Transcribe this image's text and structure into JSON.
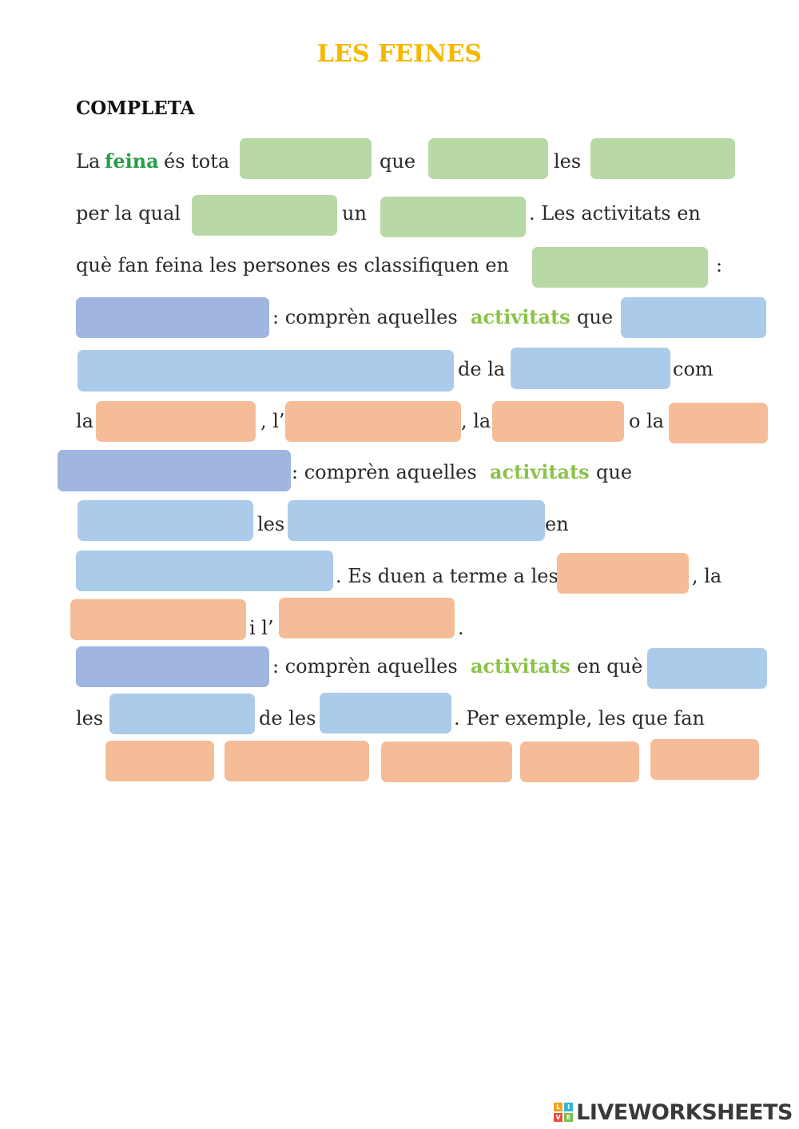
{
  "title": "LES FEINES",
  "subtitle": "COMPLETA",
  "texts": {
    "l1a": "La",
    "l1b": "feina",
    "l1c": "és tota",
    "l1d": "que",
    "l1e": "les",
    "l2a": "per la qual",
    "l2b": "un",
    "l2c": ". Les activitats en",
    "l3a": "què fan feina les persones es classifiquen en",
    "l3b": ":",
    "l4a": ": comprèn aquelles",
    "l4b": "activitats",
    "l4c": "que",
    "l5a": "de la",
    "l5b": "com",
    "l6a": "la",
    "l6b": ", l’",
    "l6c": ", la",
    "l6d": "o la",
    "l7a": ": comprèn aquelles",
    "l7b": "activitats",
    "l7c": "que",
    "l8a": "les",
    "l8b": "en",
    "l9a": ". Es duen a terme a les",
    "l9b": ", la",
    "l10a": "i l’",
    "l10b": ".",
    "l11a": ": comprèn aquelles",
    "l11b": "activitats",
    "l11c": "en què",
    "l12a": "les",
    "l12b": "de les",
    "l12c": ". Per exemple, les que fan"
  },
  "colors": {
    "title": "#f5b800",
    "highlight_dark_green": "#2a9d4a",
    "highlight_light_green": "#8bc34a",
    "box_green": "#b8d8a5",
    "box_blue": "#abcbea",
    "box_purple": "#a0b5e0",
    "box_orange": "#f4bd97"
  },
  "footer": {
    "brand": "LIVEWORKSHEETS",
    "logo_letters": [
      "L",
      "I",
      "V",
      "E"
    ],
    "logo_icon": "liveworksheets-logo-icon"
  }
}
